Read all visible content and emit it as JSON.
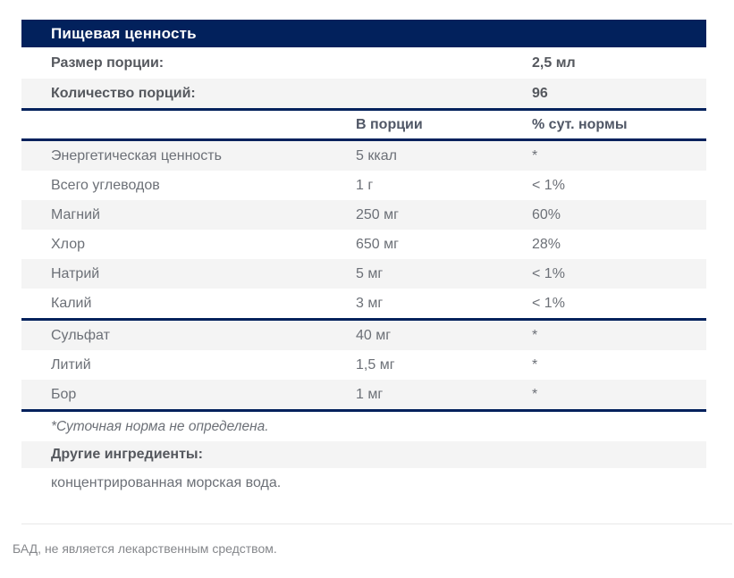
{
  "title": "Пищевая ценность",
  "serving": {
    "rows": [
      {
        "label": "Размер порции:",
        "value": "2,5 мл"
      },
      {
        "label": "Количество порций:",
        "value": "96"
      }
    ]
  },
  "columns": {
    "amount": "В порции",
    "dv": "% сут. нормы"
  },
  "nutrients": {
    "group1": [
      {
        "name": "Энергетическая ценность",
        "amount": "5 ккал",
        "dv": "*"
      },
      {
        "name": "Всего углеводов",
        "amount": "1 г",
        "dv": "< 1%"
      },
      {
        "name": "Магний",
        "amount": "250 мг",
        "dv": "60%"
      },
      {
        "name": "Хлор",
        "amount": "650 мг",
        "dv": "28%"
      },
      {
        "name": "Натрий",
        "amount": "5 мг",
        "dv": "< 1%"
      },
      {
        "name": "Калий",
        "amount": "3 мг",
        "dv": "< 1%"
      }
    ],
    "group2": [
      {
        "name": "Сульфат",
        "amount": "40 мг",
        "dv": "*"
      },
      {
        "name": "Литий",
        "amount": "1,5 мг",
        "dv": "*"
      },
      {
        "name": "Бор",
        "amount": "1 мг",
        "dv": "*"
      }
    ]
  },
  "footnote": "*Суточная норма не определена.",
  "other_ingredients": {
    "label": "Другие ингредиенты:",
    "value": "концентрированная морская вода."
  },
  "disclaimer": "БАД, не является лекарственным средством.",
  "colors": {
    "accent_navy": "#02215c",
    "row_shade": "#f4f4f4",
    "text_gray": "#6c7077",
    "disclaimer_gray": "#85878b"
  }
}
